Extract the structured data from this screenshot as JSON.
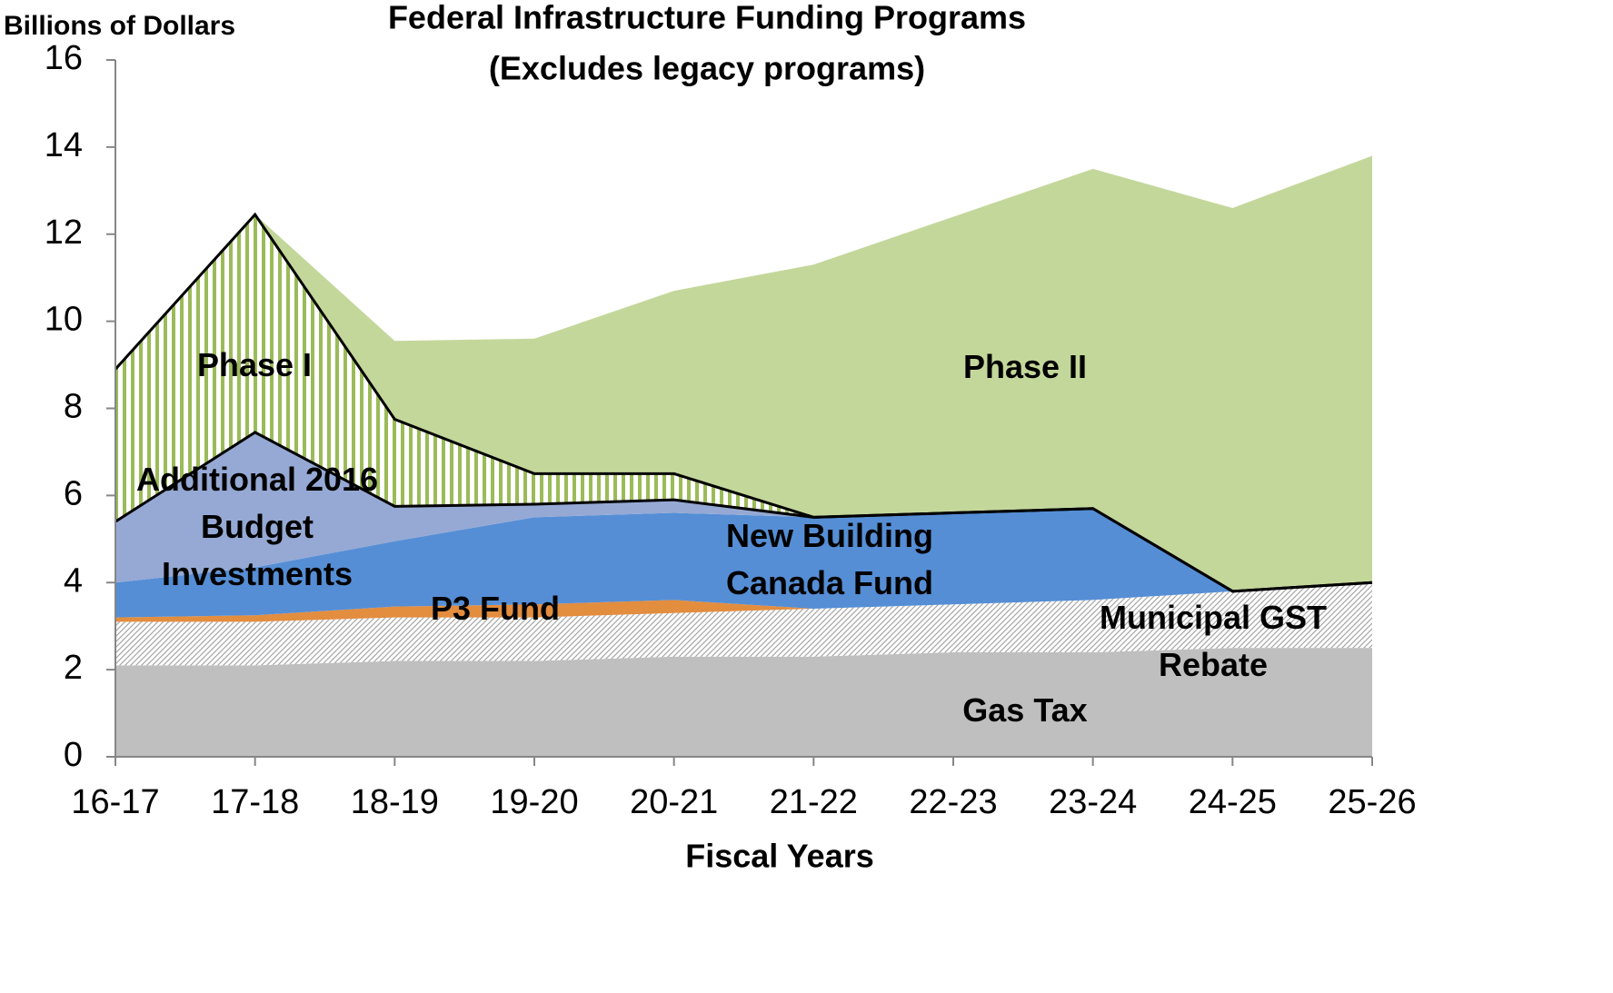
{
  "chart_data": {
    "type": "stacked-area",
    "title": "Federal Infrastructure Funding Programs",
    "subtitle": "(Excludes legacy programs)",
    "y_label": "Billions of Dollars",
    "x_label": "Fiscal Years",
    "categories": [
      "16-17",
      "17-18",
      "18-19",
      "19-20",
      "20-21",
      "21-22",
      "22-23",
      "23-24",
      "24-25",
      "25-26"
    ],
    "series": [
      {
        "name": "Gas Tax",
        "color": "#bfbfbf",
        "values": [
          2.1,
          2.1,
          2.2,
          2.2,
          2.3,
          2.3,
          2.4,
          2.4,
          2.5,
          2.5
        ]
      },
      {
        "name": "Municipal GST Rebate",
        "color": "#a6a6a6",
        "pattern": "diagonal-hatch",
        "values": [
          1.0,
          1.0,
          1.0,
          1.0,
          1.0,
          1.1,
          1.1,
          1.2,
          1.3,
          1.5
        ]
      },
      {
        "name": "P3 Fund",
        "color": "#e38d3f",
        "values": [
          0.1,
          0.15,
          0.25,
          0.3,
          0.3,
          0,
          0,
          0,
          0,
          0
        ]
      },
      {
        "name": "New Building Canada Fund",
        "color": "#558ed5",
        "values": [
          0.8,
          1.1,
          1.5,
          2.0,
          2.0,
          2.1,
          2.1,
          2.1,
          0,
          0
        ]
      },
      {
        "name": "Additional 2016 Budget Investments",
        "color": "#95a9d4",
        "outline": true,
        "values": [
          1.4,
          3.1,
          0.8,
          0.3,
          0.3,
          0,
          0,
          0,
          0,
          0
        ]
      },
      {
        "name": "Phase I",
        "color": "#9bbb59",
        "pattern": "vertical-stripes",
        "outline": true,
        "values": [
          3.5,
          5.0,
          2.0,
          0.7,
          0.6,
          0,
          0,
          0,
          0,
          0
        ]
      },
      {
        "name": "Phase II",
        "color": "#c4d79b",
        "values": [
          0,
          0,
          1.8,
          3.1,
          4.2,
          5.8,
          6.8,
          7.8,
          8.8,
          9.8
        ]
      }
    ],
    "ylim": [
      0,
      16
    ],
    "yticks": [
      0,
      2,
      4,
      6,
      8,
      10,
      12,
      14,
      16
    ],
    "grid": false
  }
}
